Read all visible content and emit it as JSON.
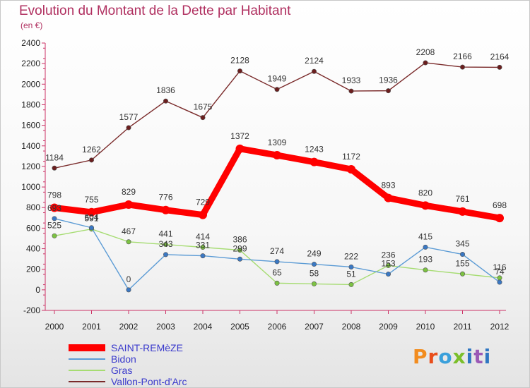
{
  "chart_data": {
    "type": "line",
    "title": "Evolution du Montant de la Dette par Habitant",
    "subtitle": "(en €)",
    "xlabel": "",
    "ylabel": "",
    "x": [
      2000,
      2001,
      2002,
      2003,
      2004,
      2005,
      2006,
      2007,
      2008,
      2009,
      2010,
      2011,
      2012
    ],
    "ylim": [
      -200,
      2400
    ],
    "yticks": [
      -200,
      0,
      200,
      400,
      600,
      800,
      1000,
      1200,
      1400,
      1600,
      1800,
      2000,
      2200,
      2400
    ],
    "grid": false,
    "legend_position": "bottom-left",
    "series": [
      {
        "name": "SAINT-REMèZE",
        "color": "#ff0000",
        "marker": "#ff0000",
        "values": [
          798,
          755,
          829,
          776,
          729,
          1372,
          1309,
          1243,
          1172,
          893,
          820,
          761,
          698
        ]
      },
      {
        "name": "Bidon",
        "color": "#5b9bd5",
        "marker": "#3a78c4",
        "values": [
          693,
          604,
          0,
          343,
          331,
          299,
          274,
          249,
          222,
          153,
          415,
          345,
          74
        ]
      },
      {
        "name": "Gras",
        "color": "#a6dc72",
        "marker": "#7cc242",
        "values": [
          525,
          591,
          467,
          441,
          414,
          386,
          65,
          58,
          51,
          236,
          193,
          155,
          116
        ]
      },
      {
        "name": "Vallon-Pont-d'Arc",
        "color": "#7a2a2a",
        "marker": "#6b1e1e",
        "values": [
          1184,
          1262,
          1577,
          1836,
          1675,
          2128,
          1949,
          2124,
          1933,
          1936,
          2208,
          2166,
          2164
        ]
      }
    ],
    "data_labels": {
      "SAINT-REMèZE": [
        "798",
        "755",
        "829",
        "776",
        "729",
        "1372",
        "1309",
        "1243",
        "1172",
        "893",
        "820",
        "761",
        "698"
      ],
      "Bidon": [
        "693",
        "604",
        "0",
        "343",
        "331",
        "299",
        "274",
        "249",
        "222",
        "153",
        "415",
        "345",
        "74"
      ],
      "Gras": [
        "525",
        "591",
        "467",
        "441",
        "414",
        "386",
        "65",
        "58",
        "51",
        "236",
        "193",
        "155",
        "116"
      ],
      "Vallon-Pont-d'Arc": [
        "1184",
        "1262",
        "1577",
        "1836",
        "1675",
        "2128",
        "1949",
        "2124",
        "1933",
        "1936",
        "2208",
        "2166",
        "2164"
      ]
    }
  },
  "logo": {
    "text": "Proxiti",
    "letters": [
      "P",
      "r",
      "o",
      "x",
      "i",
      "t",
      "i"
    ]
  }
}
